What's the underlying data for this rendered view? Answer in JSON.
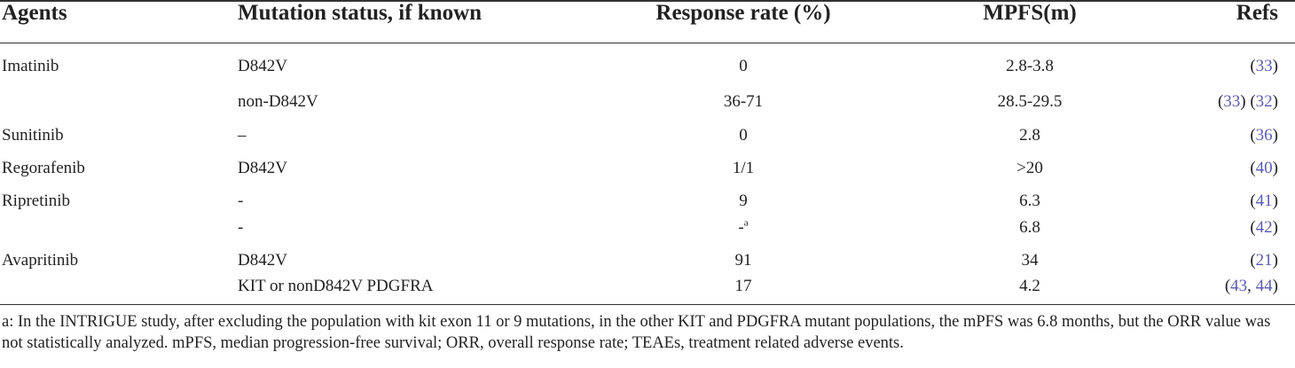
{
  "headers": {
    "agents": "Agents",
    "mutation": "Mutation status, if known",
    "response": "Response rate (%)",
    "mpfs": "MPFS(m)",
    "refs": "Refs"
  },
  "rows": [
    {
      "agent": "Imatinib",
      "mutation": "D842V",
      "response": "0",
      "response_sup": "",
      "mpfs": "2.8-3.8",
      "refs": [
        "33"
      ]
    },
    {
      "agent": "",
      "mutation": "non-D842V",
      "response": "36-71",
      "response_sup": "",
      "mpfs": "28.5-29.5",
      "refs": [
        "33",
        "32"
      ]
    },
    {
      "agent": "Sunitinib",
      "mutation": "–",
      "response": "0",
      "response_sup": "",
      "mpfs": "2.8",
      "refs": [
        "36"
      ]
    },
    {
      "agent": "Regorafenib",
      "mutation": "D842V",
      "response": "1/1",
      "response_sup": "",
      "mpfs": ">20",
      "refs": [
        "40"
      ]
    },
    {
      "agent": "Ripretinib",
      "mutation": "-",
      "response": "9",
      "response_sup": "",
      "mpfs": "6.3",
      "refs": [
        "41"
      ]
    },
    {
      "agent": "",
      "mutation": "-",
      "response": "-",
      "response_sup": "a",
      "mpfs": "6.8",
      "refs": [
        "42"
      ]
    },
    {
      "agent": "Avapritinib",
      "mutation": "D842V",
      "response": "91",
      "response_sup": "",
      "mpfs": "34",
      "refs": [
        "21"
      ]
    },
    {
      "agent": "",
      "mutation": "KIT or nonD842V PDGFRA",
      "response": "17",
      "response_sup": "",
      "mpfs": "4.2",
      "refs": [
        "43",
        "44"
      ]
    }
  ],
  "footnote": "a: In the INTRIGUE study, after excluding the population with kit exon 11 or 9 mutations, in the other KIT and PDGFRA mutant populations, the mPFS was 6.8 months, but the ORR value was not statistically analyzed. mPFS, median progression-free survival; ORR, overall response rate; TEAEs, treatment related adverse events."
}
